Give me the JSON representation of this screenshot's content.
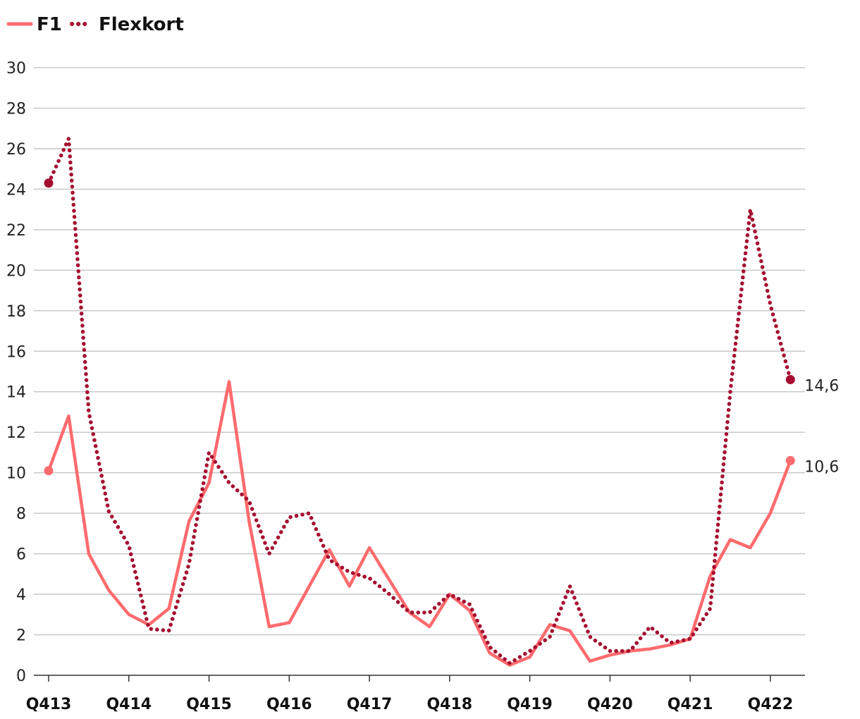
{
  "chart_data": {
    "type": "line",
    "title": "",
    "xlabel": "",
    "ylabel": "",
    "ylim": [
      0,
      30
    ],
    "yticks": [
      "0",
      "2",
      "4",
      "6",
      "8",
      "10",
      "12",
      "14",
      "16",
      "18",
      "20",
      "22",
      "24",
      "26",
      "28",
      "30"
    ],
    "xtick_labels": [
      "Q413",
      "Q414",
      "Q415",
      "Q416",
      "Q417",
      "Q418",
      "Q419",
      "Q420",
      "Q421",
      "Q422"
    ],
    "grid": true,
    "legend_position": "top-left",
    "series": [
      {
        "name": "F1",
        "color": "#ff6b6e",
        "style": "solid",
        "end_label": "10,6",
        "values": [
          10.1,
          12.8,
          6.0,
          4.2,
          3.0,
          2.5,
          3.3,
          7.6,
          9.5,
          14.5,
          7.6,
          2.4,
          2.6,
          4.4,
          6.2,
          4.4,
          6.3,
          4.7,
          3.1,
          2.4,
          4.0,
          3.2,
          1.1,
          0.5,
          0.9,
          2.5,
          2.2,
          0.7,
          1.0,
          1.2,
          1.3,
          1.5,
          1.8,
          4.9,
          6.7,
          6.3,
          8.0,
          10.6
        ]
      },
      {
        "name": "Flexkort",
        "color": "#a50e2f",
        "style": "dotted",
        "end_label": "14,6",
        "values": [
          24.3,
          26.5,
          13.0,
          8.1,
          6.4,
          2.3,
          2.2,
          5.5,
          11.0,
          9.5,
          8.6,
          6.0,
          7.8,
          8.0,
          5.7,
          5.1,
          4.8,
          4.0,
          3.1,
          3.1,
          4.0,
          3.5,
          1.4,
          0.6,
          1.2,
          1.9,
          4.4,
          1.9,
          1.2,
          1.2,
          2.4,
          1.6,
          1.8,
          3.3,
          14.0,
          23.0,
          18.3,
          14.6
        ]
      }
    ]
  }
}
